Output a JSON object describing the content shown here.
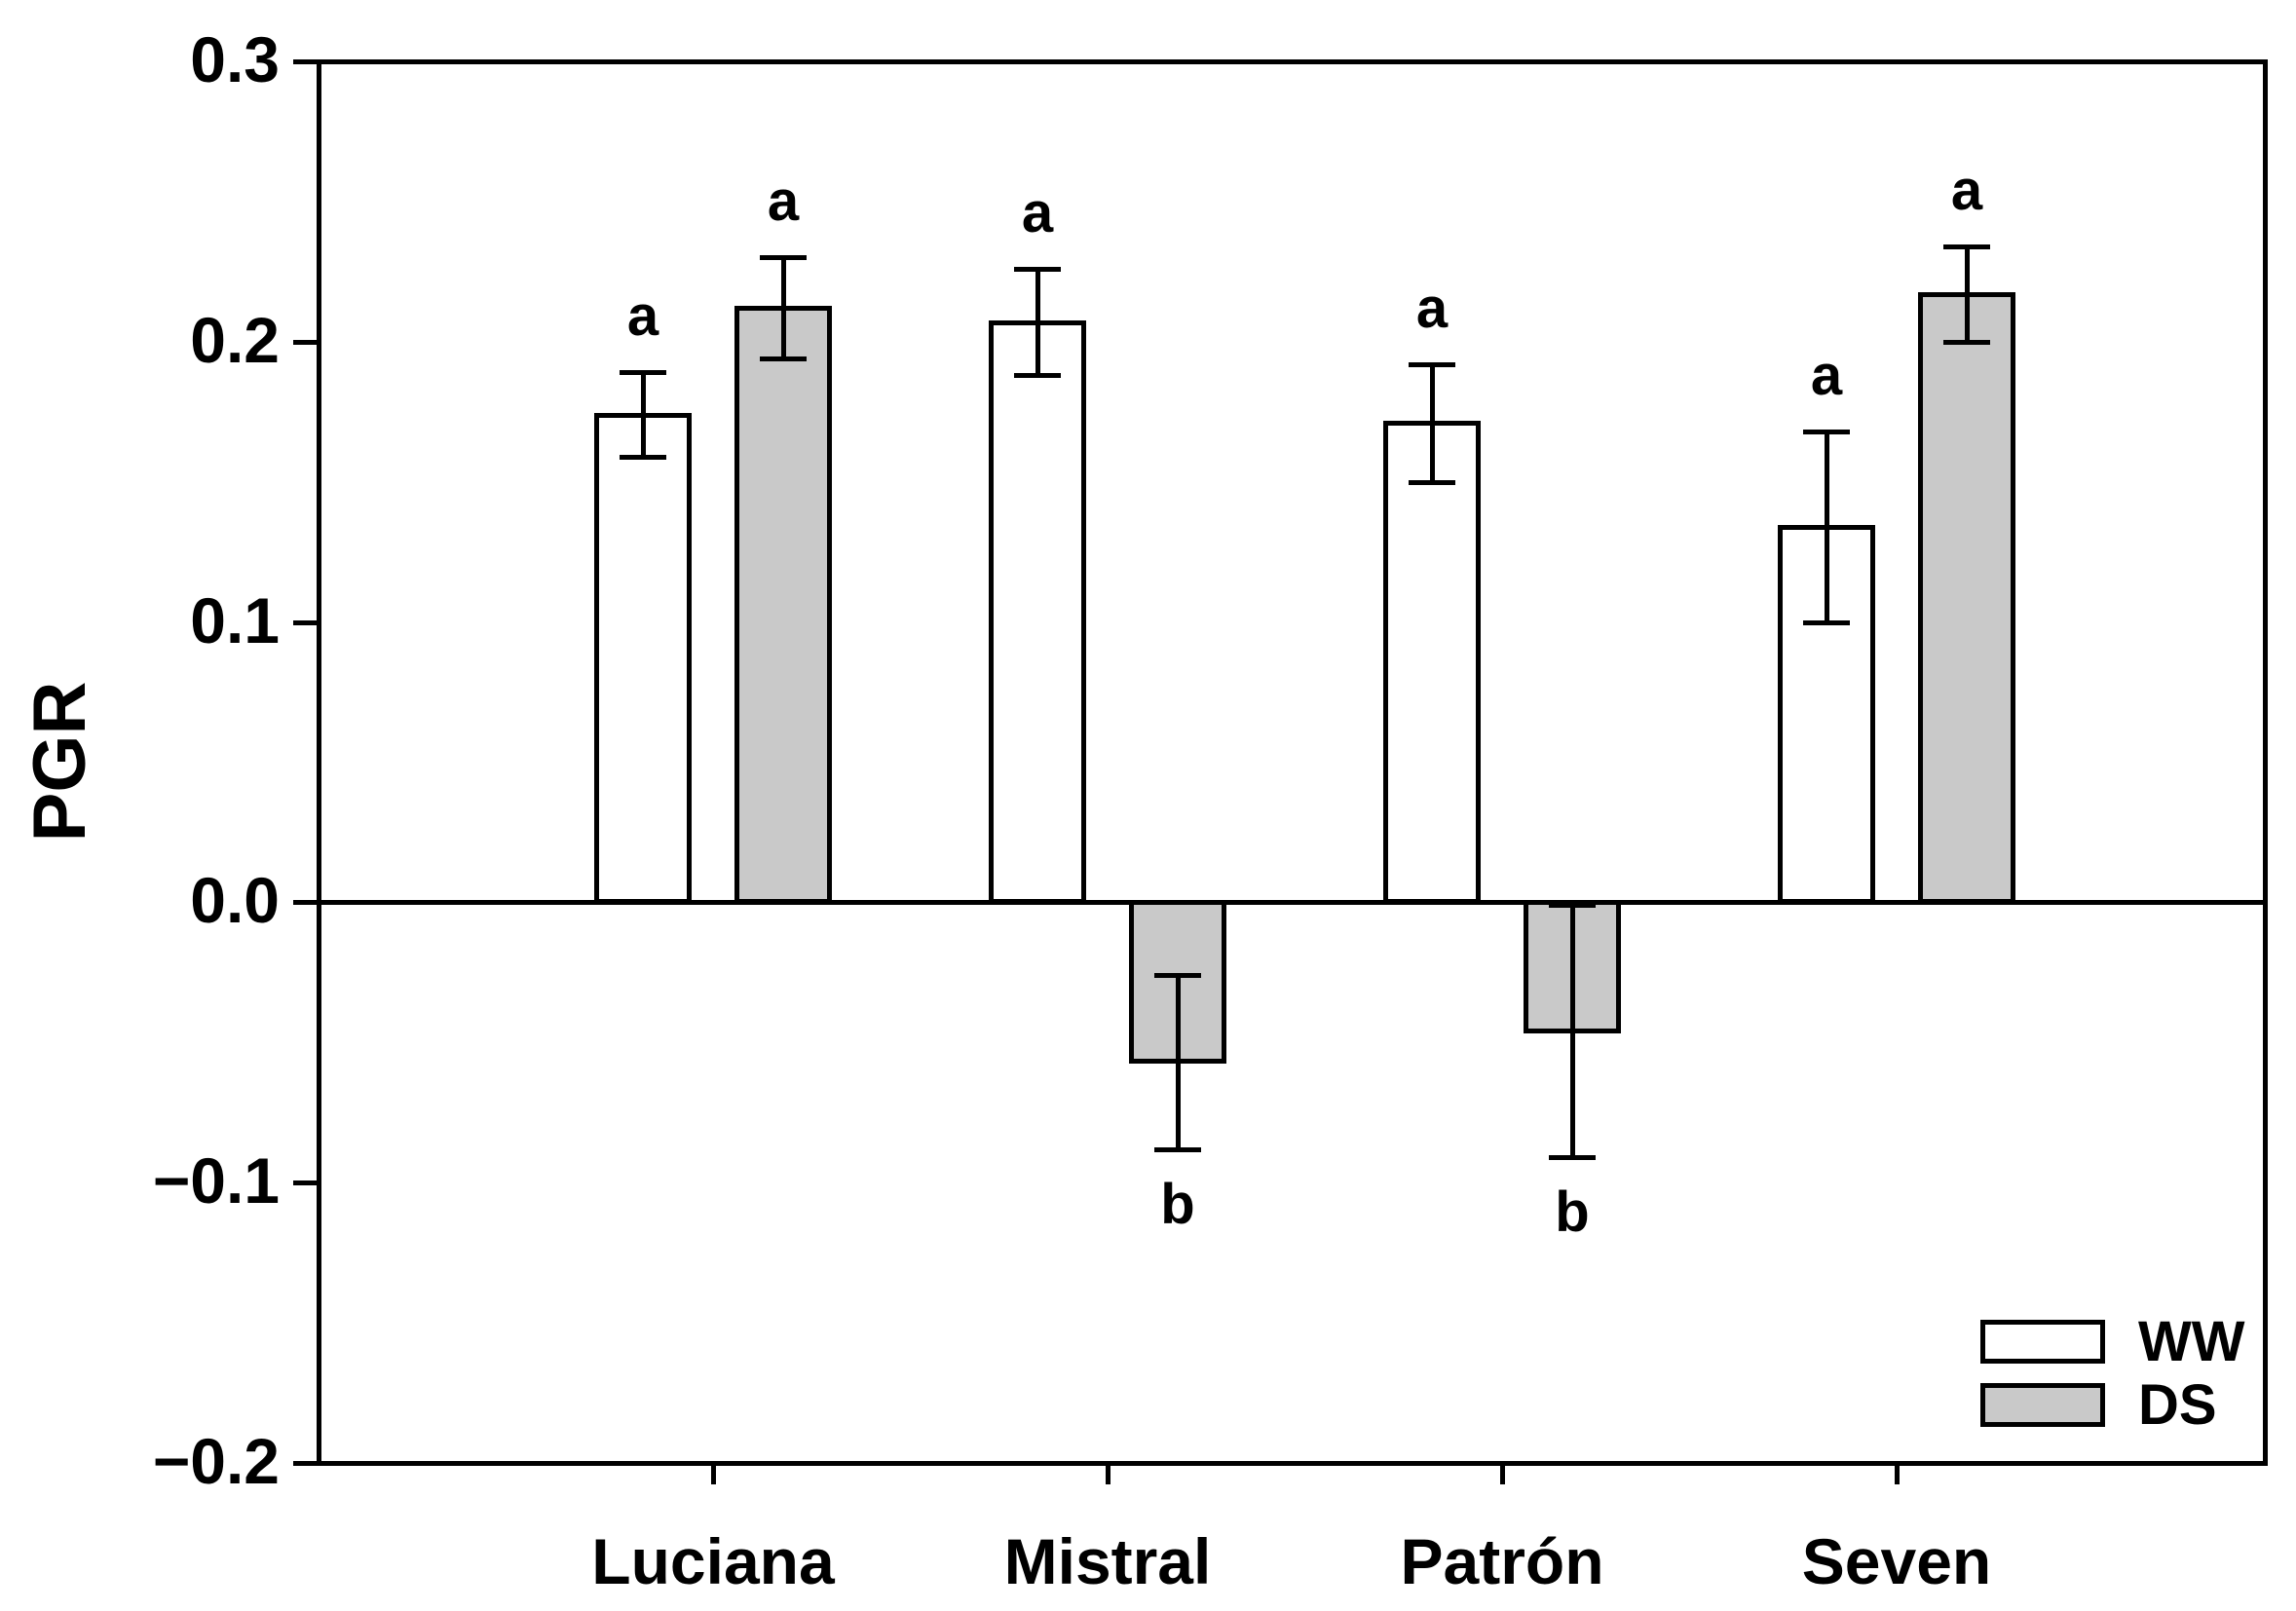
{
  "chart_data": {
    "type": "bar",
    "title": "",
    "xlabel": "",
    "ylabel": "PGR",
    "categories": [
      "Luciana",
      "Mistral",
      "Patrón",
      "Seven"
    ],
    "series": [
      {
        "name": "WW",
        "color": "#ffffff",
        "values": [
          0.174,
          0.207,
          0.171,
          0.134
        ],
        "errors": [
          0.015,
          0.019,
          0.021,
          0.034
        ],
        "sig_letters": [
          "a",
          "a",
          "a",
          "a"
        ]
      },
      {
        "name": "DS",
        "color": "#c9c9c9",
        "values": [
          0.212,
          -0.057,
          -0.046,
          0.217
        ],
        "errors": [
          0.018,
          0.031,
          0.045,
          0.017
        ],
        "sig_letters": [
          "a",
          "b",
          "b",
          "a"
        ]
      }
    ],
    "ylim": [
      -0.2,
      0.3
    ],
    "yticks": [
      0.3,
      0.2,
      0.1,
      0.0,
      -0.1,
      -0.2
    ],
    "ytick_labels": [
      "0.3",
      "0.2",
      "0.1",
      "0.0",
      "−0.1",
      "−0.2"
    ],
    "grid": false,
    "bar_outline_color": "#000000",
    "error_bar_style": "symmetric-with-caps",
    "legend": {
      "position": "bottom-right",
      "entries": [
        "WW",
        "DS"
      ]
    }
  }
}
